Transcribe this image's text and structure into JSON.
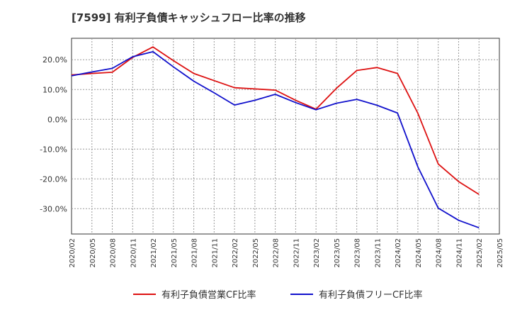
{
  "title": "[7599]  有利子負債キャッシュフロー比率の推移",
  "chart_data": {
    "type": "line",
    "title": "[7599]  有利子負債キャッシュフロー比率の推移",
    "xlabel": "",
    "ylabel": "",
    "x": [
      "2020/02",
      "2020/05",
      "2020/08",
      "2020/11",
      "2021/02",
      "2021/05",
      "2021/08",
      "2021/11",
      "2022/02",
      "2022/05",
      "2022/08",
      "2022/11",
      "2023/02",
      "2023/05",
      "2023/08",
      "2023/11",
      "2024/02",
      "2024/05",
      "2024/08",
      "2024/11",
      "2025/02",
      "2025/05"
    ],
    "y_ticks": [
      "20.0%",
      "10.0%",
      "0.0%",
      "-10.0%",
      "-20.0%",
      "-30.0%"
    ],
    "y_tick_values": [
      20,
      10,
      0,
      -10,
      -20,
      -30
    ],
    "ylim": [
      -38.5,
      27.2
    ],
    "grid": true,
    "legend_position": "bottom",
    "series": [
      {
        "name": "有利子負債営業CF比率",
        "color": "#dd1111",
        "values": [
          14.9,
          15.4,
          15.8,
          20.8,
          24.3,
          19.7,
          15.4,
          13.0,
          10.6,
          10.2,
          9.8,
          6.4,
          3.4,
          10.4,
          16.4,
          17.4,
          15.4,
          2.0,
          -15.0,
          -20.9,
          -25.2,
          null
        ]
      },
      {
        "name": "有利子負債フリーCF比率",
        "color": "#1111cc",
        "values": [
          14.6,
          15.9,
          17.1,
          21.0,
          22.7,
          17.6,
          12.8,
          8.9,
          4.8,
          6.4,
          8.4,
          5.6,
          3.2,
          5.4,
          6.7,
          4.7,
          2.1,
          -16.0,
          -29.8,
          -33.9,
          -36.4,
          null
        ]
      }
    ]
  }
}
